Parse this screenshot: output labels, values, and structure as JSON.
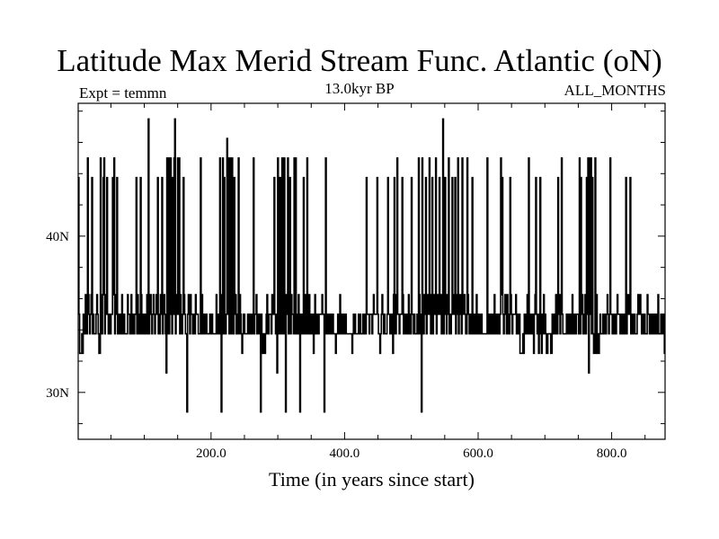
{
  "chart_data": {
    "type": "line",
    "title": "Latitude Max Merid Stream Func. Atlantic (oN)",
    "subtitle": "13.0kyr BP",
    "left_label": "Expt = temmn",
    "right_label": "ALL_MONTHS",
    "xlabel": "Time (in years since start)",
    "ylabel": "",
    "xlim": [
      1,
      880
    ],
    "ylim": [
      27,
      48.5
    ],
    "x_ticks": [
      {
        "value": 200,
        "label": "200.0"
      },
      {
        "value": 400,
        "label": "400.0"
      },
      {
        "value": 600,
        "label": "600.0"
      },
      {
        "value": 800,
        "label": "800.0"
      }
    ],
    "y_ticks": [
      {
        "value": 30,
        "label": "30N"
      },
      {
        "value": 40,
        "label": "40N"
      }
    ],
    "grid": false,
    "levels": [
      28.75,
      31.25,
      32.5,
      33.75,
      35,
      36.25,
      37.5,
      38.75,
      40,
      41.25,
      43.75,
      45,
      46.25,
      47.5
    ],
    "series": [
      {
        "values": [
          43.75,
          35,
          32.5,
          32.5,
          32.5,
          33.75,
          32.5,
          35,
          35,
          33.75,
          36.25,
          35,
          33.75,
          45,
          36.25,
          35,
          33.75,
          35,
          36.25,
          43.75,
          33.75,
          35,
          33.75,
          33.75,
          33.75,
          35,
          36.25,
          35,
          33.75,
          32.5,
          32.5,
          45,
          35,
          33.75,
          36.25,
          43.75,
          45,
          33.75,
          35,
          36.25,
          43.75,
          35,
          33.75,
          35,
          33.75,
          33.75,
          35,
          35,
          43.75,
          36.25,
          45,
          33.75,
          35,
          36.25,
          43.75,
          33.75,
          33.75,
          35,
          33.75,
          33.75,
          35,
          36.25,
          33.75,
          35,
          35,
          33.75,
          33.75,
          33.75,
          33.75,
          36.25,
          35,
          35,
          33.75,
          35,
          36.25,
          33.75,
          35,
          35,
          33.75,
          35,
          35,
          43.75,
          33.75,
          36.25,
          35,
          33.75,
          33.75,
          43.75,
          36.25,
          33.75,
          35,
          33.75,
          35,
          35,
          33.75,
          35,
          36.25,
          33.75,
          47.5,
          33.75,
          35,
          36.25,
          35,
          33.75,
          35,
          36.25,
          35,
          33.75,
          35,
          36.25,
          35,
          43.75,
          33.75,
          35,
          33.75,
          36.25,
          35,
          43.75,
          33.75,
          35,
          36.25,
          35,
          33.75,
          31.25,
          45,
          33.75,
          45,
          33.75,
          35,
          45,
          36.25,
          33.75,
          43.75,
          35,
          45,
          47.5,
          33.75,
          35,
          36.25,
          45,
          35,
          45,
          33.75,
          36.25,
          35,
          33.75,
          35,
          43.75,
          36.25,
          35,
          33.75,
          33.75,
          28.75,
          35,
          36.25,
          35,
          33.75,
          36.25,
          35,
          35,
          33.75,
          33.75,
          35,
          33.75,
          36.25,
          35,
          35,
          35,
          33.75,
          33.75,
          33.75,
          45,
          33.75,
          36.25,
          35,
          33.75,
          35,
          35,
          33.75,
          35,
          33.75,
          33.75,
          33.75,
          33.75,
          35,
          33.75,
          35,
          35,
          33.75,
          33.75,
          33.75,
          33.75,
          33.75,
          36.25,
          35,
          33.75,
          35,
          33.75,
          45,
          36.25,
          28.75,
          36.25,
          45,
          33.75,
          43.75,
          35,
          33.75,
          35,
          46.25,
          35,
          45,
          33.75,
          35,
          45,
          33.75,
          45,
          35,
          33.75,
          43.75,
          35,
          36.25,
          33.75,
          35,
          33.75,
          45,
          33.75,
          36.25,
          35,
          33.75,
          32.5,
          33.75,
          35,
          35,
          33.75,
          33.75,
          33.75,
          33.75,
          35,
          33.75,
          35,
          33.75,
          33.75,
          35,
          33.75,
          35,
          45,
          33.75,
          35,
          35,
          36.25,
          33.75,
          35,
          33.75,
          33.75,
          35,
          28.75,
          35,
          33.75,
          32.5,
          32.5,
          33.75,
          32.5,
          33.75,
          35,
          36.25,
          33.75,
          33.75,
          35,
          35,
          35,
          33.75,
          36.25,
          35,
          35,
          43.75,
          35,
          33.75,
          35,
          31.25,
          45,
          36.25,
          33.75,
          43.75,
          33.75,
          35,
          45,
          33.75,
          35,
          45,
          33.75,
          28.75,
          36.25,
          35,
          45,
          33.75,
          36.25,
          43.75,
          33.75,
          36.25,
          35,
          35,
          33.75,
          45,
          33.75,
          45,
          33.75,
          35,
          33.75,
          36.25,
          35,
          28.75,
          33.75,
          35,
          33.75,
          35,
          43.75,
          33.75,
          36.25,
          35,
          33.75,
          45,
          35,
          33.75,
          36.25,
          33.75,
          35,
          33.75,
          35,
          33.75,
          32.5,
          35,
          36.25,
          33.75,
          35,
          33.75,
          35,
          33.75,
          35,
          35,
          35,
          35,
          36.25,
          35,
          35,
          28.75,
          33.75,
          45,
          33.75,
          35,
          33.75,
          35,
          35,
          33.75,
          35,
          33.75,
          35,
          35,
          33.75,
          33.75,
          33.75,
          32.5,
          33.75,
          33.75,
          35,
          35,
          33.75,
          36.25,
          33.75,
          35,
          33.75,
          35,
          33.75,
          35,
          33.75,
          35,
          33.75,
          33.75,
          33.75,
          33.75,
          33.75,
          33.75,
          33.75,
          33.75,
          32.5,
          33.75,
          35,
          33.75,
          35,
          33.75,
          33.75,
          33.75,
          33.75,
          35,
          33.75,
          35,
          33.75,
          33.75,
          33.75,
          35,
          33.75,
          33.75,
          35,
          33.75,
          43.75,
          35,
          35,
          35,
          33.75,
          35,
          35,
          35,
          33.75,
          35,
          36.25,
          35,
          35,
          35,
          35,
          43.75,
          35,
          33.75,
          33.75,
          32.5,
          33.75,
          35,
          36.25,
          35,
          33.75,
          35,
          33.75,
          33.75,
          33.75,
          35,
          43.75,
          35,
          35,
          33.75,
          35,
          35,
          33.75,
          32.5,
          36.25,
          43.75,
          33.75,
          33.75,
          36.25,
          45,
          35,
          35,
          33.75,
          35,
          35,
          35,
          43.75,
          36.25,
          33.75,
          33.75,
          35,
          33.75,
          35,
          35,
          33.75,
          36.25,
          33.75,
          35,
          33.75,
          43.75,
          35,
          35,
          33.75,
          35,
          33.75,
          33.75,
          33.75,
          35,
          33.75,
          45,
          36.25,
          33.75,
          35,
          28.75,
          45,
          35,
          33.75,
          36.25,
          35,
          43.75,
          33.75,
          35,
          36.25,
          35,
          45,
          36.25,
          33.75,
          35,
          43.75,
          33.75,
          35,
          36.25,
          35,
          45,
          33.75,
          36.25,
          35,
          35,
          43.75,
          35,
          36.25,
          33.75,
          35,
          47.5,
          33.75,
          35,
          43.75,
          36.25,
          33.75,
          35,
          36.25,
          45,
          33.75,
          35,
          33.75,
          35,
          43.75,
          36.25,
          35,
          35,
          43.75,
          33.75,
          36.25,
          35,
          45,
          33.75,
          35,
          36.25,
          35,
          33.75,
          45,
          35,
          35,
          36.25,
          35,
          33.75,
          33.75,
          45,
          36.25,
          35,
          33.75,
          33.75,
          35,
          33.75,
          43.75,
          33.75,
          35,
          33.75,
          35,
          33.75,
          36.25,
          33.75,
          35,
          35,
          33.75,
          35,
          33.75,
          35,
          33.75,
          33.75,
          33.75,
          33.75,
          33.75,
          33.75,
          33.75,
          45,
          33.75,
          35,
          33.75,
          33.75,
          35,
          35,
          33.75,
          33.75,
          35,
          36.25,
          33.75,
          35,
          33.75,
          33.75,
          35,
          35,
          33.75,
          35,
          45,
          36.25,
          43.75,
          35,
          33.75,
          35,
          36.25,
          35,
          33.75,
          36.25,
          35,
          33.75,
          33.75,
          43.75,
          36.25,
          35,
          33.75,
          35,
          35,
          35,
          35,
          36.25,
          33.75,
          35,
          33.75,
          35,
          35,
          32.5,
          32.5,
          32.5,
          32.5,
          33.75,
          32.5,
          35,
          33.75,
          35,
          33.75,
          36.25,
          33.75,
          45,
          35,
          33.75,
          35,
          33.75,
          35,
          33.75,
          32.5,
          35,
          36.25,
          43.75,
          35,
          33.75,
          35,
          32.5,
          33.75,
          43.75,
          33.75,
          32.5,
          35,
          33.75,
          36.25,
          33.75,
          35,
          33.75,
          32.5,
          32.5,
          33.75,
          33.75,
          33.75,
          33.75,
          32.5,
          32.5,
          35,
          33.75,
          35,
          33.75,
          33.75,
          36.25,
          35,
          33.75,
          43.75,
          35,
          36.25,
          33.75,
          35,
          45,
          35,
          33.75,
          33.75,
          33.75,
          33.75,
          33.75,
          35,
          33.75,
          33.75,
          35,
          33.75,
          33.75,
          35,
          33.75,
          36.25,
          33.75,
          35,
          33.75,
          35,
          33.75,
          35,
          35,
          35,
          33.75,
          45,
          33.75,
          43.75,
          35,
          36.25,
          33.75,
          33.75,
          35,
          36.25,
          33.75,
          43.75,
          35,
          45,
          31.25,
          45,
          35,
          45,
          33.75,
          43.75,
          33.75,
          32.5,
          33.75,
          45,
          32.5,
          36.25,
          32.5,
          33.75,
          32.5,
          33.75,
          35,
          33.75,
          33.75,
          33.75,
          35,
          33.75,
          33.75,
          35,
          33.75,
          35,
          36.25,
          35,
          33.75,
          35,
          45,
          35,
          35,
          33.75,
          35,
          35,
          33.75,
          35,
          33.75,
          35,
          36.25,
          35,
          35,
          35,
          33.75,
          33.75,
          35,
          35,
          33.75,
          35,
          33.75,
          33.75,
          43.75,
          33.75,
          35,
          36.25,
          35,
          35,
          43.75,
          33.75,
          35,
          33.75,
          35,
          33.75,
          35,
          33.75,
          33.75,
          33.75,
          35,
          36.25,
          35,
          35,
          36.25,
          35,
          33.75,
          33.75,
          35,
          33.75,
          35,
          33.75,
          33.75,
          33.75,
          36.25,
          35,
          35,
          33.75,
          35,
          35,
          33.75,
          35,
          33.75,
          35,
          33.75,
          33.75,
          35,
          33.75,
          35,
          36.25,
          33.75,
          33.75,
          33.75,
          35,
          33.75,
          35,
          33.75,
          35,
          32.5
        ]
      }
    ]
  }
}
